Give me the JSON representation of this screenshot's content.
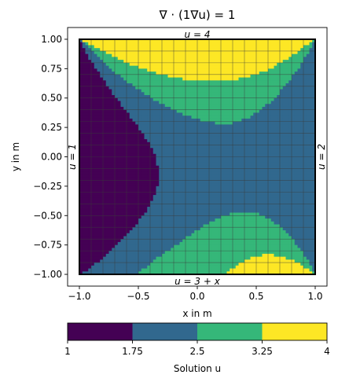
{
  "chart_data": {
    "type": "heatmap",
    "title": "∇ · (1∇u) = 1",
    "xlabel": "x in m",
    "ylabel": "y in m",
    "xlim": [
      -1.1,
      1.1
    ],
    "ylim": [
      -1.1,
      1.1
    ],
    "xticks": [
      -1.0,
      -0.5,
      0.0,
      0.5,
      1.0
    ],
    "xtick_labels": [
      "−1.0",
      "−0.5",
      "0.0",
      "0.5",
      "1.0"
    ],
    "yticks": [
      1.0,
      0.75,
      0.5,
      0.25,
      0.0,
      -0.25,
      -0.5,
      -0.75,
      -1.0
    ],
    "ytick_labels": [
      "1.00",
      "0.75",
      "0.50",
      "0.25",
      "0.00",
      "−0.25",
      "−0.50",
      "−0.75",
      "−1.00"
    ],
    "grid": {
      "cells_x": 20,
      "cells_y": 20
    },
    "boundary_labels": {
      "top": "u = 4",
      "bottom": "u = 3 + x",
      "left": "u = 1",
      "right": "u = 2"
    },
    "levels": [
      1,
      1.75,
      2.5,
      3.25,
      4
    ],
    "level_colors": [
      "#440154",
      "#31688e",
      "#35b779",
      "#fde725"
    ],
    "grid_color": "#3a3a3a",
    "contour_line_color": "#8a8a8a",
    "colorbar": {
      "ticks": [
        1,
        1.75,
        2.5,
        3.25,
        4
      ],
      "tick_labels": [
        "1",
        "1.75",
        "2.5",
        "3.25",
        "4"
      ],
      "label": "Solution u"
    }
  }
}
